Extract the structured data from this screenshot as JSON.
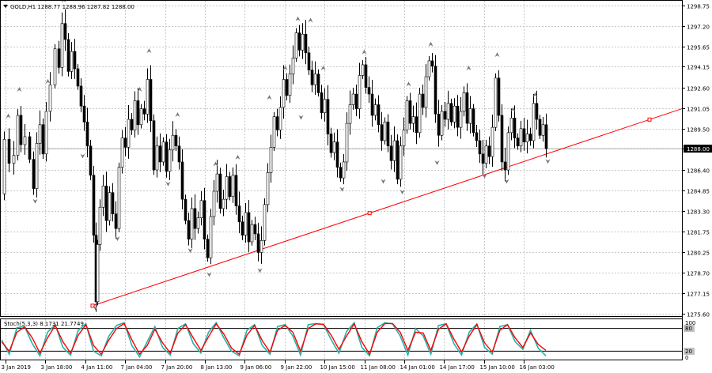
{
  "header": {
    "symbol": "GOLD,H1",
    "ohlc": "1288.77 1288.96 1287.82 1288.00"
  },
  "indicator": {
    "label": "Stoch(5,3,3) 8.1731 21.7749",
    "levels": [
      "100",
      "80",
      "20",
      "0"
    ]
  },
  "colors": {
    "background": "#ffffff",
    "grid": "#c8c8c8",
    "candles": "#000000",
    "trendline": "#ff0000",
    "price_marker": "#000000",
    "stoch_main": "#20b2aa",
    "stoch_signal": "#ff0000"
  },
  "icons": {
    "menu": "triangle-down-icon",
    "fractal_up": "up-arrow-icon",
    "fractal_down": "down-arrow-icon"
  },
  "chart_data": {
    "type": "candlestick",
    "symbol": "GOLD",
    "timeframe": "H1",
    "y_ticks": [
      "1298.75",
      "1297.20",
      "1295.65",
      "1294.15",
      "1292.60",
      "1291.05",
      "1289.50",
      "1288.00",
      "1286.40",
      "1284.85",
      "1283.30",
      "1281.75",
      "1280.25",
      "1278.70",
      "1277.15",
      "1275.60"
    ],
    "ylim": [
      1275.6,
      1298.75
    ],
    "current_price": "1288.00",
    "x_labels": [
      "3 Jan 2019",
      "3 Jan 18:00",
      "4 Jan 11:00",
      "7 Jan 04:00",
      "7 Jan 20:00",
      "8 Jan 13:00",
      "9 Jan 06:00",
      "9 Jan 22:00",
      "10 Jan 15:00",
      "11 Jan 08:00",
      "14 Jan 01:00",
      "14 Jan 17:00",
      "15 Jan 10:00",
      "16 Jan 03:00"
    ],
    "price_path": [
      [
        0,
        1284.6
      ],
      [
        6,
        1288.7
      ],
      [
        12,
        1286.9
      ],
      [
        18,
        1287.5
      ],
      [
        22,
        1290.5
      ],
      [
        26,
        1288.3
      ],
      [
        32,
        1288.9
      ],
      [
        38,
        1287.2
      ],
      [
        42,
        1285.0
      ],
      [
        46,
        1288.4
      ],
      [
        50,
        1289.8
      ],
      [
        54,
        1287.6
      ],
      [
        58,
        1290.8
      ],
      [
        64,
        1292.8
      ],
      [
        70,
        1295.5
      ],
      [
        74,
        1294.1
      ],
      [
        78,
        1297.4
      ],
      [
        82,
        1296.2
      ],
      [
        86,
        1293.8
      ],
      [
        90,
        1295.3
      ],
      [
        94,
        1294.0
      ],
      [
        98,
        1292.7
      ],
      [
        102,
        1291.2
      ],
      [
        106,
        1290.0
      ],
      [
        110,
        1288.2
      ],
      [
        114,
        1286.0
      ],
      [
        118,
        1281.5
      ],
      [
        120,
        1276.5
      ],
      [
        122,
        1280.8
      ],
      [
        126,
        1283.6
      ],
      [
        130,
        1285.2
      ],
      [
        134,
        1282.6
      ],
      [
        138,
        1284.7
      ],
      [
        142,
        1283.1
      ],
      [
        146,
        1282.0
      ],
      [
        150,
        1286.6
      ],
      [
        154,
        1288.8
      ],
      [
        158,
        1288.1
      ],
      [
        162,
        1290.2
      ],
      [
        166,
        1289.4
      ],
      [
        170,
        1291.6
      ],
      [
        174,
        1289.8
      ],
      [
        178,
        1291.0
      ],
      [
        182,
        1290.6
      ],
      [
        186,
        1293.2
      ],
      [
        190,
        1290.1
      ],
      [
        194,
        1286.4
      ],
      [
        198,
        1288.2
      ],
      [
        202,
        1287.0
      ],
      [
        206,
        1288.5
      ],
      [
        210,
        1286.3
      ],
      [
        214,
        1287.9
      ],
      [
        218,
        1289.0
      ],
      [
        222,
        1288.2
      ],
      [
        226,
        1287.0
      ],
      [
        230,
        1284.2
      ],
      [
        234,
        1282.6
      ],
      [
        238,
        1281.2
      ],
      [
        242,
        1283.5
      ],
      [
        246,
        1282.0
      ],
      [
        250,
        1282.8
      ],
      [
        254,
        1284.1
      ],
      [
        258,
        1281.2
      ],
      [
        262,
        1279.8
      ],
      [
        266,
        1282.9
      ],
      [
        270,
        1284.8
      ],
      [
        274,
        1286.1
      ],
      [
        278,
        1283.5
      ],
      [
        282,
        1284.2
      ],
      [
        286,
        1285.9
      ],
      [
        290,
        1284.4
      ],
      [
        294,
        1286.0
      ],
      [
        298,
        1283.7
      ],
      [
        302,
        1282.5
      ],
      [
        306,
        1281.5
      ],
      [
        310,
        1283.2
      ],
      [
        314,
        1281.0
      ],
      [
        318,
        1282.3
      ],
      [
        322,
        1281.6
      ],
      [
        326,
        1280.2
      ],
      [
        330,
        1281.1
      ],
      [
        334,
        1283.8
      ],
      [
        338,
        1286.2
      ],
      [
        342,
        1288.1
      ],
      [
        346,
        1290.4
      ],
      [
        350,
        1289.4
      ],
      [
        354,
        1291.1
      ],
      [
        358,
        1293.2
      ],
      [
        362,
        1292.0
      ],
      [
        366,
        1293.6
      ],
      [
        370,
        1294.8
      ],
      [
        374,
        1296.7
      ],
      [
        378,
        1295.4
      ],
      [
        382,
        1296.6
      ],
      [
        386,
        1295.2
      ],
      [
        390,
        1293.9
      ],
      [
        394,
        1292.8
      ],
      [
        398,
        1293.6
      ],
      [
        402,
        1292.2
      ],
      [
        406,
        1290.7
      ],
      [
        410,
        1291.7
      ],
      [
        414,
        1289.1
      ],
      [
        418,
        1287.7
      ],
      [
        422,
        1288.5
      ],
      [
        426,
        1286.6
      ],
      [
        430,
        1285.8
      ],
      [
        434,
        1287.0
      ],
      [
        438,
        1289.9
      ],
      [
        442,
        1291.3
      ],
      [
        446,
        1292.1
      ],
      [
        450,
        1291.0
      ],
      [
        454,
        1293.5
      ],
      [
        458,
        1294.3
      ],
      [
        462,
        1292.6
      ],
      [
        466,
        1292.1
      ],
      [
        470,
        1290.5
      ],
      [
        474,
        1291.3
      ],
      [
        478,
        1289.8
      ],
      [
        482,
        1288.6
      ],
      [
        486,
        1290.0
      ],
      [
        490,
        1288.2
      ],
      [
        494,
        1287.1
      ],
      [
        498,
        1288.6
      ],
      [
        502,
        1285.7
      ],
      [
        506,
        1288.2
      ],
      [
        510,
        1289.4
      ],
      [
        514,
        1291.6
      ],
      [
        518,
        1289.9
      ],
      [
        522,
        1290.4
      ],
      [
        526,
        1289.2
      ],
      [
        530,
        1292.1
      ],
      [
        534,
        1291.1
      ],
      [
        538,
        1293.4
      ],
      [
        542,
        1294.6
      ],
      [
        546,
        1294.2
      ],
      [
        550,
        1290.6
      ],
      [
        554,
        1289.0
      ],
      [
        558,
        1290.8
      ],
      [
        562,
        1290.2
      ],
      [
        566,
        1291.4
      ],
      [
        570,
        1290.0
      ],
      [
        574,
        1291.2
      ],
      [
        578,
        1289.6
      ],
      [
        582,
        1290.8
      ],
      [
        586,
        1292.2
      ],
      [
        590,
        1289.9
      ],
      [
        594,
        1291.0
      ],
      [
        598,
        1289.2
      ],
      [
        602,
        1288.6
      ],
      [
        606,
        1287.6
      ],
      [
        610,
        1286.9
      ],
      [
        614,
        1288.2
      ],
      [
        618,
        1287.4
      ],
      [
        622,
        1289.6
      ],
      [
        626,
        1293.3
      ],
      [
        630,
        1290.5
      ],
      [
        634,
        1287.0
      ],
      [
        638,
        1286.4
      ],
      [
        642,
        1289.2
      ],
      [
        646,
        1290.3
      ],
      [
        650,
        1288.8
      ],
      [
        654,
        1288.2
      ],
      [
        658,
        1289.5
      ],
      [
        662,
        1288.5
      ],
      [
        666,
        1289.1
      ],
      [
        670,
        1288.6
      ],
      [
        674,
        1291.4
      ],
      [
        678,
        1290.2
      ],
      [
        682,
        1289.0
      ],
      [
        686,
        1289.8
      ],
      [
        690,
        1288.0
      ]
    ],
    "trendline": {
      "start": [
        "4 Jan 11:00",
        1276.2
      ],
      "end": [
        "beyond 16 Jan",
        1291.0
      ],
      "color": "#ff0000"
    },
    "fractals_up": [
      [
        8,
        1290.4
      ],
      [
        22,
        1292.4
      ],
      [
        58,
        1293.0
      ],
      [
        78,
        1299.1
      ],
      [
        174,
        1292.4
      ],
      [
        186,
        1295.3
      ],
      [
        222,
        1290.5
      ],
      [
        270,
        1286.8
      ],
      [
        298,
        1287.3
      ],
      [
        338,
        1291.8
      ],
      [
        358,
        1294.0
      ],
      [
        374,
        1297.7
      ],
      [
        390,
        1297.6
      ],
      [
        406,
        1294.0
      ],
      [
        458,
        1295.2
      ],
      [
        514,
        1292.8
      ],
      [
        542,
        1295.8
      ],
      [
        590,
        1294.0
      ],
      [
        626,
        1295.0
      ],
      [
        646,
        1290.9
      ],
      [
        674,
        1292.0
      ]
    ],
    "fractals_down": [
      [
        42,
        1284.1
      ],
      [
        102,
        1287.5
      ],
      [
        118,
        1276.1
      ],
      [
        146,
        1281.3
      ],
      [
        210,
        1285.4
      ],
      [
        238,
        1280.4
      ],
      [
        262,
        1278.6
      ],
      [
        326,
        1278.9
      ],
      [
        378,
        1290.4
      ],
      [
        430,
        1285.0
      ],
      [
        482,
        1285.6
      ],
      [
        506,
        1284.8
      ],
      [
        550,
        1287.0
      ],
      [
        610,
        1286.0
      ],
      [
        638,
        1285.6
      ],
      [
        690,
        1287.1
      ]
    ],
    "stochastic": {
      "params": "5,3,3",
      "main": 8.1731,
      "signal": 21.7749,
      "levels": [
        80,
        20
      ],
      "main_path": [
        50,
        12,
        82,
        85,
        40,
        8,
        70,
        90,
        30,
        10,
        75,
        92,
        20,
        8,
        60,
        88,
        95,
        35,
        5,
        45,
        85,
        30,
        10,
        80,
        92,
        40,
        15,
        70,
        95,
        55,
        20,
        8,
        75,
        90,
        35,
        12,
        85,
        90,
        60,
        10,
        90,
        93,
        90,
        50,
        15,
        72,
        95,
        30,
        8,
        82,
        95,
        92,
        60,
        10,
        80,
        60,
        12,
        88,
        92,
        40,
        10,
        70,
        92,
        30,
        12,
        85,
        90,
        45,
        25,
        75,
        28,
        8
      ],
      "signal_path": [
        45,
        20,
        70,
        84,
        55,
        15,
        55,
        88,
        45,
        15,
        62,
        90,
        35,
        12,
        50,
        80,
        93,
        50,
        12,
        35,
        78,
        42,
        15,
        68,
        90,
        55,
        22,
        58,
        92,
        65,
        28,
        12,
        62,
        88,
        48,
        18,
        75,
        88,
        70,
        20,
        80,
        92,
        91,
        62,
        25,
        60,
        92,
        45,
        12,
        70,
        93,
        93,
        70,
        22,
        70,
        68,
        22,
        78,
        92,
        52,
        18,
        60,
        90,
        42,
        18,
        75,
        90,
        55,
        30,
        68,
        38,
        22
      ]
    }
  }
}
